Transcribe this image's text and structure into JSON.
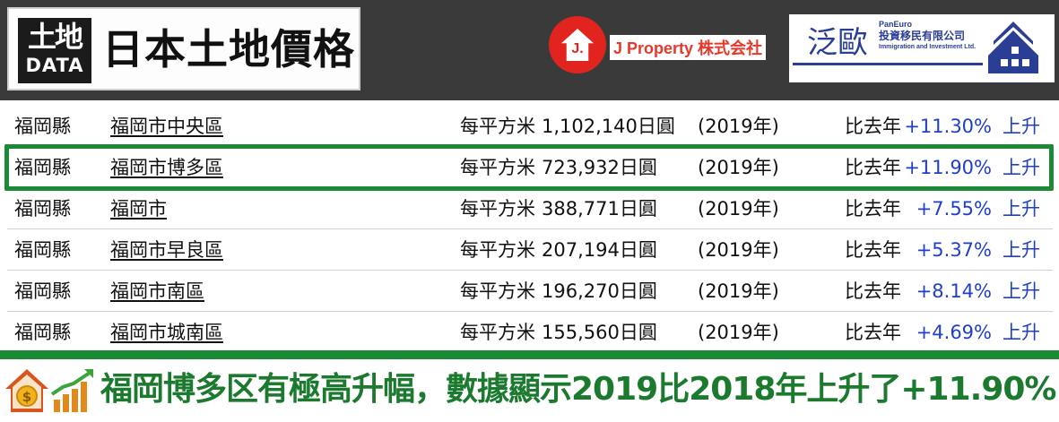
{
  "header": {
    "logo_kanji": "土地",
    "logo_word": "DATA",
    "title": "日本土地價格",
    "partner1_mark": "J.",
    "partner1_name": "J Property 株式会社",
    "partner2_name": "泛歐",
    "partner2_en": "PanEuro",
    "partner2_cn": "投資移民有限公司",
    "partner2_sub": "Immigration and Investment Ltd."
  },
  "table": {
    "rows": [
      {
        "pref": "福岡縣",
        "city": "福岡市中央區",
        "unit": "每平方米",
        "price": "1,102,140日圓",
        "year": "(2019年)",
        "cmp": "比去年",
        "change": "+11.30%",
        "trend": "上升"
      },
      {
        "pref": "福岡縣",
        "city": "福岡市博多區",
        "unit": "每平方米",
        "price": "723,932日圓",
        "year": "(2019年)",
        "cmp": "比去年",
        "change": "+11.90%",
        "trend": "上升"
      },
      {
        "pref": "福岡縣",
        "city": "福岡市",
        "unit": "每平方米",
        "price": "388,771日圓",
        "year": "(2019年)",
        "cmp": "比去年",
        "change": "+7.55%",
        "trend": "上升"
      },
      {
        "pref": "福岡縣",
        "city": "福岡市早良區",
        "unit": "每平方米",
        "price": "207,194日圓",
        "year": "(2019年)",
        "cmp": "比去年",
        "change": "+5.37%",
        "trend": "上升"
      },
      {
        "pref": "福岡縣",
        "city": "福岡市南區",
        "unit": "每平方米",
        "price": "196,270日圓",
        "year": "(2019年)",
        "cmp": "比去年",
        "change": "+8.14%",
        "trend": "上升"
      },
      {
        "pref": "福岡縣",
        "city": "福岡市城南區",
        "unit": "每平方米",
        "price": "155,560日圓",
        "year": "(2019年)",
        "cmp": "比去年",
        "change": "+4.69%",
        "trend": "上升"
      }
    ]
  },
  "caption": {
    "text": "福岡博多区有極高升幅，數據顯示2019比2018年上升了+11.90%"
  },
  "colors": {
    "header_bg": "#3a3a3a",
    "highlight_green": "#1b8a35",
    "caption_green": "#1b7a2e",
    "change_blue": "#1f3fc8",
    "jp_red": "#e2241f",
    "paneuro_blue": "#2a3e94"
  },
  "icons": [
    "house-coin-icon",
    "rising-chart-icon",
    "paneuro-house-icon",
    "jproperty-house-icon"
  ]
}
